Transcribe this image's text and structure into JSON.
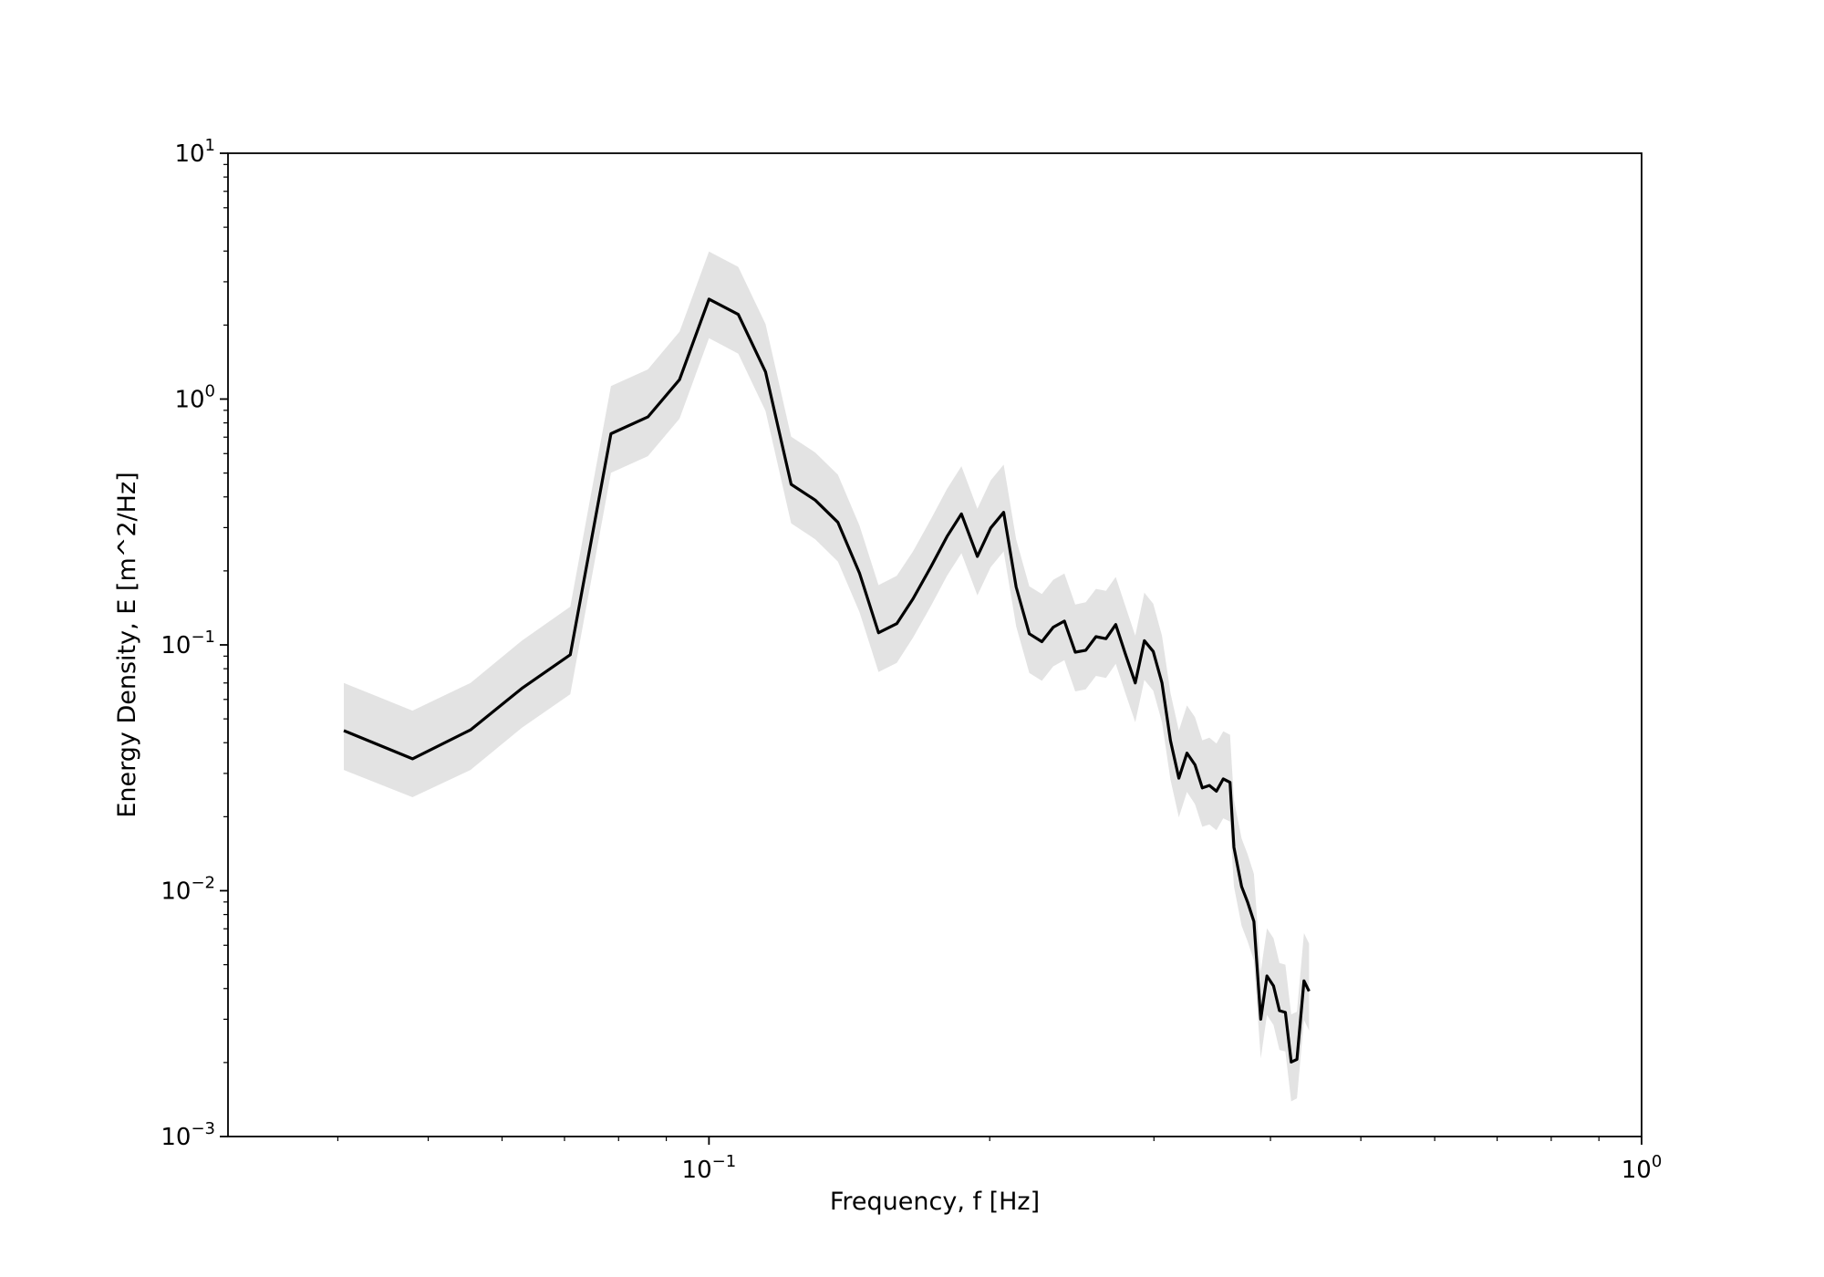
{
  "chart_data": {
    "type": "line",
    "title": "",
    "xlabel": "Frequency, f [Hz]",
    "ylabel": "Energy Density, E [m^2/Hz]",
    "xscale": "log",
    "yscale": "log",
    "xlim": [
      0.0305,
      1.0
    ],
    "ylim": [
      0.001,
      10
    ],
    "grid": false,
    "legend": "none",
    "x_major_ticks": [
      {
        "value": 0.1,
        "base": "10",
        "exp": "−1"
      },
      {
        "value": 1.0,
        "base": "10",
        "exp": "0"
      }
    ],
    "y_major_ticks": [
      {
        "value": 0.001,
        "base": "10",
        "exp": "−3"
      },
      {
        "value": 0.01,
        "base": "10",
        "exp": "−2"
      },
      {
        "value": 0.1,
        "base": "10",
        "exp": "−1"
      },
      {
        "value": 1,
        "base": "10",
        "exp": "0"
      },
      {
        "value": 10,
        "base": "10",
        "exp": "1"
      }
    ],
    "colors": {
      "line": "#000000",
      "band": "#e3e3e3"
    },
    "series": [
      {
        "role": "mean",
        "points": [
          [
            0.0406,
            0.0448
          ],
          [
            0.0481,
            0.0344
          ],
          [
            0.0555,
            0.0451
          ],
          [
            0.063,
            0.0665
          ],
          [
            0.071,
            0.0912
          ],
          [
            0.0785,
            0.723
          ],
          [
            0.086,
            0.846
          ],
          [
            0.093,
            1.2
          ],
          [
            0.1,
            2.55
          ],
          [
            0.1075,
            2.21
          ],
          [
            0.115,
            1.29
          ],
          [
            0.1225,
            0.45
          ],
          [
            0.13,
            0.388
          ],
          [
            0.1375,
            0.315
          ],
          [
            0.145,
            0.196
          ],
          [
            0.152,
            0.112
          ],
          [
            0.159,
            0.122
          ],
          [
            0.1655,
            0.154
          ],
          [
            0.173,
            0.208
          ],
          [
            0.18,
            0.276
          ],
          [
            0.1865,
            0.341
          ],
          [
            0.194,
            0.229
          ],
          [
            0.2005,
            0.299
          ],
          [
            0.207,
            0.346
          ],
          [
            0.2135,
            0.172
          ],
          [
            0.2205,
            0.111
          ],
          [
            0.2275,
            0.103
          ],
          [
            0.234,
            0.118
          ],
          [
            0.2405,
            0.125
          ],
          [
            0.247,
            0.0934
          ],
          [
            0.2535,
            0.0951
          ],
          [
            0.26,
            0.108
          ],
          [
            0.2665,
            0.106
          ],
          [
            0.273,
            0.121
          ],
          [
            0.2795,
            0.092
          ],
          [
            0.2865,
            0.07
          ],
          [
            0.293,
            0.104
          ],
          [
            0.2995,
            0.094
          ],
          [
            0.306,
            0.07
          ],
          [
            0.3125,
            0.0408
          ],
          [
            0.319,
            0.0287
          ],
          [
            0.3255,
            0.0363
          ],
          [
            0.332,
            0.0325
          ],
          [
            0.338,
            0.0262
          ],
          [
            0.344,
            0.0268
          ],
          [
            0.35,
            0.0254
          ],
          [
            0.356,
            0.0285
          ],
          [
            0.362,
            0.0276
          ],
          [
            0.3655,
            0.015
          ],
          [
            0.3725,
            0.0104
          ],
          [
            0.378,
            0.009
          ],
          [
            0.384,
            0.0075
          ],
          [
            0.3905,
            0.003
          ],
          [
            0.3965,
            0.0045
          ],
          [
            0.403,
            0.0041
          ],
          [
            0.409,
            0.00325
          ],
          [
            0.415,
            0.0032
          ],
          [
            0.421,
            0.00201
          ],
          [
            0.427,
            0.00206
          ],
          [
            0.4345,
            0.0043
          ],
          [
            0.44,
            0.0039
          ]
        ]
      },
      {
        "role": "upper bound",
        "points": [
          [
            0.0406,
            0.07
          ],
          [
            0.0481,
            0.054
          ],
          [
            0.0555,
            0.07
          ],
          [
            0.063,
            0.104
          ],
          [
            0.071,
            0.143
          ],
          [
            0.0785,
            1.13
          ],
          [
            0.086,
            1.32
          ],
          [
            0.093,
            1.88
          ],
          [
            0.1,
            3.98
          ],
          [
            0.1075,
            3.45
          ],
          [
            0.115,
            2.02
          ],
          [
            0.1225,
            0.703
          ],
          [
            0.13,
            0.606
          ],
          [
            0.1375,
            0.492
          ],
          [
            0.145,
            0.306
          ],
          [
            0.152,
            0.175
          ],
          [
            0.159,
            0.191
          ],
          [
            0.1655,
            0.24
          ],
          [
            0.173,
            0.325
          ],
          [
            0.18,
            0.431
          ],
          [
            0.1865,
            0.533
          ],
          [
            0.194,
            0.358
          ],
          [
            0.2005,
            0.467
          ],
          [
            0.207,
            0.541
          ],
          [
            0.2135,
            0.269
          ],
          [
            0.2205,
            0.173
          ],
          [
            0.2275,
            0.161
          ],
          [
            0.234,
            0.184
          ],
          [
            0.2405,
            0.195
          ],
          [
            0.247,
            0.146
          ],
          [
            0.2535,
            0.149
          ],
          [
            0.26,
            0.169
          ],
          [
            0.2665,
            0.166
          ],
          [
            0.273,
            0.189
          ],
          [
            0.2795,
            0.144
          ],
          [
            0.2865,
            0.109
          ],
          [
            0.293,
            0.163
          ],
          [
            0.2995,
            0.147
          ],
          [
            0.306,
            0.109
          ],
          [
            0.3125,
            0.0638
          ],
          [
            0.319,
            0.0448
          ],
          [
            0.3255,
            0.0567
          ],
          [
            0.332,
            0.0508
          ],
          [
            0.338,
            0.0409
          ],
          [
            0.344,
            0.0419
          ],
          [
            0.35,
            0.0397
          ],
          [
            0.356,
            0.0445
          ],
          [
            0.362,
            0.0431
          ],
          [
            0.3655,
            0.0234
          ],
          [
            0.3725,
            0.0163
          ],
          [
            0.378,
            0.0141
          ],
          [
            0.384,
            0.0117
          ],
          [
            0.3905,
            0.00469
          ],
          [
            0.3965,
            0.00703
          ],
          [
            0.403,
            0.00641
          ],
          [
            0.409,
            0.00508
          ],
          [
            0.415,
            0.005
          ],
          [
            0.421,
            0.00314
          ],
          [
            0.427,
            0.00322
          ],
          [
            0.4345,
            0.00672
          ],
          [
            0.44,
            0.00609
          ]
        ]
      },
      {
        "role": "lower bound",
        "points": [
          [
            0.0406,
            0.031
          ],
          [
            0.0481,
            0.024
          ],
          [
            0.0555,
            0.031
          ],
          [
            0.063,
            0.046
          ],
          [
            0.071,
            0.063
          ],
          [
            0.0785,
            0.501
          ],
          [
            0.086,
            0.586
          ],
          [
            0.093,
            0.832
          ],
          [
            0.1,
            1.77
          ],
          [
            0.1075,
            1.53
          ],
          [
            0.115,
            0.894
          ],
          [
            0.1225,
            0.312
          ],
          [
            0.13,
            0.269
          ],
          [
            0.1375,
            0.218
          ],
          [
            0.145,
            0.136
          ],
          [
            0.152,
            0.0776
          ],
          [
            0.159,
            0.0845
          ],
          [
            0.1655,
            0.107
          ],
          [
            0.173,
            0.144
          ],
          [
            0.18,
            0.191
          ],
          [
            0.1865,
            0.236
          ],
          [
            0.194,
            0.159
          ],
          [
            0.2005,
            0.207
          ],
          [
            0.207,
            0.24
          ],
          [
            0.2135,
            0.119
          ],
          [
            0.2205,
            0.0769
          ],
          [
            0.2275,
            0.0714
          ],
          [
            0.234,
            0.0818
          ],
          [
            0.2405,
            0.0866
          ],
          [
            0.247,
            0.0647
          ],
          [
            0.2535,
            0.0659
          ],
          [
            0.26,
            0.0748
          ],
          [
            0.2665,
            0.0734
          ],
          [
            0.273,
            0.0838
          ],
          [
            0.2795,
            0.0637
          ],
          [
            0.2865,
            0.0485
          ],
          [
            0.293,
            0.072
          ],
          [
            0.2995,
            0.0651
          ],
          [
            0.306,
            0.0485
          ],
          [
            0.3125,
            0.0283
          ],
          [
            0.319,
            0.0199
          ],
          [
            0.3255,
            0.0252
          ],
          [
            0.332,
            0.0225
          ],
          [
            0.338,
            0.0182
          ],
          [
            0.344,
            0.0186
          ],
          [
            0.35,
            0.0176
          ],
          [
            0.356,
            0.0197
          ],
          [
            0.362,
            0.0191
          ],
          [
            0.3655,
            0.0104
          ],
          [
            0.3725,
            0.0072
          ],
          [
            0.378,
            0.00624
          ],
          [
            0.384,
            0.0052
          ],
          [
            0.3905,
            0.00208
          ],
          [
            0.3965,
            0.00312
          ],
          [
            0.403,
            0.00284
          ],
          [
            0.409,
            0.00225
          ],
          [
            0.415,
            0.00222
          ],
          [
            0.421,
            0.00139
          ],
          [
            0.427,
            0.00143
          ],
          [
            0.4345,
            0.00298
          ],
          [
            0.44,
            0.0027
          ]
        ]
      }
    ]
  }
}
